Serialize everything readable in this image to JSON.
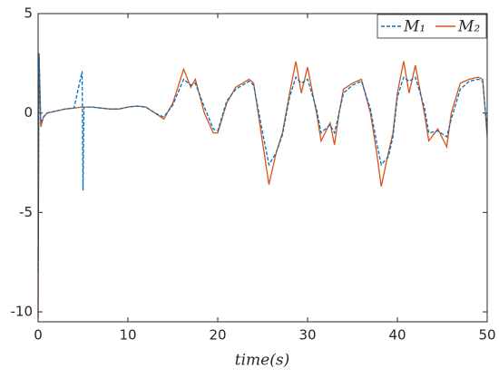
{
  "chart_data": {
    "type": "line",
    "xlabel": "time(s)",
    "x": [
      0,
      0.1,
      0.3,
      0.6,
      1,
      2,
      3,
      4,
      4.9,
      5,
      5.1,
      6,
      7,
      8,
      9,
      10,
      11,
      12,
      13,
      14,
      15,
      16.2,
      17,
      17.5,
      18.5,
      19.5,
      20,
      21,
      22,
      23.5,
      24,
      25,
      25.7,
      26.5,
      27.2,
      28,
      28.7,
      29.3,
      30,
      31,
      31.5,
      32.5,
      33,
      33.5,
      34,
      35,
      36,
      37,
      37.7,
      38.2,
      39,
      39.5,
      40,
      40.7,
      41.3,
      42,
      43,
      43.5,
      44.5,
      45.5,
      46,
      47,
      48,
      49,
      49.5,
      50
    ],
    "series": [
      {
        "name": "M₁",
        "color": "#0072bd",
        "dash": true,
        "values": [
          -8,
          3,
          -0.5,
          -0.2,
          0,
          0.1,
          0.2,
          0.25,
          2.1,
          -3.9,
          0.3,
          0.3,
          0.25,
          0.2,
          0.2,
          0.3,
          0.35,
          0.3,
          0,
          -0.2,
          0.4,
          1.7,
          1.4,
          1.5,
          0.3,
          -0.8,
          -0.9,
          0.6,
          1.2,
          1.6,
          1.4,
          -1,
          -2.6,
          -2,
          -1.1,
          0.8,
          1.8,
          1.5,
          1.7,
          0.2,
          -1,
          -0.6,
          -1,
          0,
          1,
          1.4,
          1.6,
          0.2,
          -1.5,
          -2.6,
          -2.2,
          -1.2,
          0.8,
          1.8,
          1.6,
          1.8,
          0.3,
          -1,
          -0.9,
          -1.2,
          -0.3,
          1.2,
          1.6,
          1.7,
          1.6,
          -0.9
        ]
      },
      {
        "name": "M₂",
        "color": "#d95319",
        "dash": false,
        "values": [
          -10.3,
          3,
          -0.7,
          -0.2,
          0,
          0.1,
          0.2,
          0.25,
          0.3,
          0.3,
          0.3,
          0.3,
          0.25,
          0.2,
          0.2,
          0.3,
          0.35,
          0.3,
          0,
          -0.3,
          0.5,
          2.2,
          1.3,
          1.7,
          0,
          -1,
          -1,
          0.5,
          1.3,
          1.7,
          1.5,
          -1.5,
          -3.6,
          -2,
          -1,
          1,
          2.6,
          1,
          2.3,
          0,
          -1.4,
          -0.5,
          -1.6,
          0,
          1.2,
          1.5,
          1.7,
          0,
          -2,
          -3.7,
          -2,
          -1,
          1,
          2.6,
          1,
          2.4,
          0,
          -1.4,
          -0.8,
          -1.7,
          0,
          1.5,
          1.7,
          1.8,
          1.7,
          -1.2
        ]
      }
    ],
    "xlim": [
      0,
      50
    ],
    "xticks": [
      0,
      10,
      20,
      30,
      40,
      50
    ],
    "ylim": [
      -10.5,
      5
    ],
    "yticks": [
      -10,
      -5,
      0,
      5
    ],
    "legend": "upper right"
  }
}
